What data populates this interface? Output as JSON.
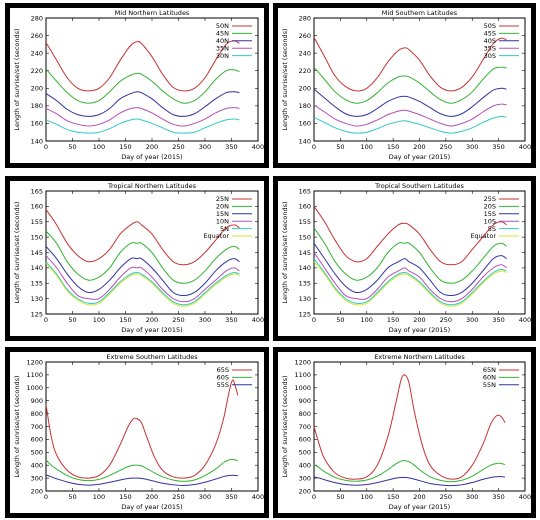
{
  "chart_data": [
    {
      "type": "line",
      "title": "Mid Northern Latitudes",
      "xlabel": "Day of year (2015)",
      "ylabel": "Length of sunrise/set (seconds)",
      "xlim": [
        0,
        400
      ],
      "ylim": [
        140,
        280
      ],
      "xticks": [
        0,
        50,
        100,
        150,
        200,
        250,
        300,
        350,
        400
      ],
      "yticks": [
        140,
        160,
        180,
        200,
        220,
        240,
        260,
        280
      ],
      "legend_position": "top-right",
      "x": [
        0,
        20,
        40,
        60,
        80,
        100,
        120,
        140,
        160,
        172,
        180,
        200,
        220,
        240,
        260,
        280,
        300,
        320,
        340,
        355,
        365
      ],
      "series": [
        {
          "name": "50N",
          "color": "#c83232",
          "values": [
            252,
            232,
            212,
            200,
            197,
            200,
            212,
            232,
            249,
            253,
            251,
            236,
            216,
            201,
            197,
            200,
            212,
            232,
            250,
            254,
            251
          ]
        },
        {
          "name": "45N",
          "color": "#32b432",
          "values": [
            222,
            208,
            195,
            186,
            183,
            186,
            196,
            208,
            215,
            217,
            216,
            208,
            197,
            188,
            183,
            186,
            196,
            210,
            220,
            221,
            219
          ]
        },
        {
          "name": "40N",
          "color": "#3232a0",
          "values": [
            194,
            186,
            176,
            170,
            168,
            170,
            177,
            188,
            194,
            196,
            195,
            188,
            178,
            170,
            168,
            171,
            179,
            188,
            195,
            196,
            195
          ]
        },
        {
          "name": "35N",
          "color": "#b450b4",
          "values": [
            177,
            171,
            163,
            159,
            157,
            159,
            164,
            172,
            177,
            178,
            177,
            172,
            165,
            159,
            157,
            160,
            165,
            172,
            177,
            178,
            177
          ]
        },
        {
          "name": "30N",
          "color": "#32c8c8",
          "values": [
            164,
            159,
            153,
            150,
            149,
            150,
            154,
            160,
            164,
            165,
            164,
            160,
            155,
            150,
            149,
            150,
            155,
            160,
            164,
            165,
            164
          ]
        }
      ]
    },
    {
      "type": "line",
      "title": "Mid Southern Latitudes",
      "xlabel": "Day of year (2015)",
      "ylabel": "Length of sunrise/set (seconds)",
      "xlim": [
        0,
        400
      ],
      "ylim": [
        140,
        280
      ],
      "xticks": [
        0,
        50,
        100,
        150,
        200,
        250,
        300,
        350,
        400
      ],
      "yticks": [
        140,
        160,
        180,
        200,
        220,
        240,
        260,
        280
      ],
      "legend_position": "top-right",
      "x": [
        0,
        20,
        40,
        60,
        80,
        100,
        120,
        140,
        160,
        172,
        180,
        200,
        220,
        240,
        260,
        280,
        300,
        320,
        340,
        355,
        365
      ],
      "series": [
        {
          "name": "50S",
          "color": "#c83232",
          "values": [
            258,
            236,
            214,
            202,
            197,
            200,
            212,
            230,
            243,
            246,
            244,
            232,
            214,
            201,
            197,
            201,
            213,
            232,
            251,
            257,
            255
          ]
        },
        {
          "name": "45S",
          "color": "#32b432",
          "values": [
            224,
            210,
            196,
            187,
            183,
            186,
            195,
            206,
            213,
            214,
            213,
            206,
            196,
            187,
            183,
            187,
            196,
            210,
            222,
            224,
            223
          ]
        },
        {
          "name": "40S",
          "color": "#3232a0",
          "values": [
            199,
            189,
            179,
            171,
            168,
            170,
            177,
            185,
            190,
            191,
            190,
            185,
            178,
            171,
            168,
            171,
            179,
            189,
            198,
            200,
            199
          ]
        },
        {
          "name": "35S",
          "color": "#b450b4",
          "values": [
            181,
            173,
            165,
            160,
            157,
            159,
            164,
            170,
            174,
            175,
            174,
            170,
            165,
            160,
            157,
            160,
            165,
            173,
            180,
            182,
            181
          ]
        },
        {
          "name": "30S",
          "color": "#32c8c8",
          "values": [
            167,
            161,
            155,
            151,
            149,
            150,
            154,
            159,
            162,
            163,
            162,
            159,
            155,
            151,
            149,
            151,
            155,
            161,
            166,
            168,
            167
          ]
        }
      ]
    },
    {
      "type": "line",
      "title": "Tropical Northern Latitudes",
      "xlabel": "Day of year (2015)",
      "ylabel": "Length of sunrise/set (seconds)",
      "xlim": [
        0,
        400
      ],
      "ylim": [
        125,
        165
      ],
      "xticks": [
        0,
        50,
        100,
        150,
        200,
        250,
        300,
        350,
        400
      ],
      "yticks": [
        125,
        130,
        135,
        140,
        145,
        150,
        155,
        160,
        165
      ],
      "legend_position": "top-right",
      "x": [
        0,
        20,
        40,
        60,
        80,
        100,
        120,
        140,
        160,
        172,
        180,
        200,
        220,
        240,
        260,
        280,
        300,
        320,
        340,
        355,
        365
      ],
      "series": [
        {
          "name": "25N",
          "color": "#c83232",
          "values": [
            159,
            154,
            148,
            144,
            142,
            143,
            146,
            151,
            154,
            155,
            154,
            151,
            146,
            142,
            141,
            142,
            145,
            149,
            153,
            154,
            153
          ]
        },
        {
          "name": "20N",
          "color": "#32b432",
          "values": [
            152,
            148,
            142,
            138,
            136,
            137,
            140,
            145,
            148,
            148,
            148,
            145,
            140,
            136,
            135,
            136,
            139,
            143,
            146,
            147,
            146
          ]
        },
        {
          "name": "15N",
          "color": "#3232a0",
          "values": [
            147,
            143,
            138,
            134,
            132,
            133,
            136,
            140,
            143,
            143,
            143,
            140,
            136,
            132,
            131,
            132,
            135,
            139,
            142,
            143,
            142
          ]
        },
        {
          "name": "10N",
          "color": "#b450b4",
          "values": [
            144,
            140,
            135,
            131,
            130,
            130,
            133,
            137,
            140,
            140,
            140,
            137,
            133,
            130,
            129,
            130,
            133,
            136,
            139,
            140,
            139
          ]
        },
        {
          "name": "5N",
          "color": "#32c8c8",
          "values": [
            142,
            138,
            133,
            130,
            128.5,
            129,
            132,
            135.5,
            138,
            138.5,
            138,
            135.5,
            132,
            129,
            128,
            129,
            132,
            135,
            137.5,
            138.5,
            138
          ]
        },
        {
          "name": "Equator",
          "color": "#d2e632",
          "values": [
            141.5,
            137.5,
            132.5,
            129.5,
            128,
            128.5,
            131.5,
            135,
            137.5,
            138,
            137.5,
            135,
            131.5,
            128.5,
            127.5,
            128.5,
            131.5,
            134.5,
            137,
            138,
            137.5
          ]
        }
      ]
    },
    {
      "type": "line",
      "title": "Tropical Southern Latitudes",
      "xlabel": "Day of year (2015)",
      "ylabel": "Length of sunrise/set (seconds)",
      "xlim": [
        0,
        400
      ],
      "ylim": [
        125,
        165
      ],
      "xticks": [
        0,
        50,
        100,
        150,
        200,
        250,
        300,
        350,
        400
      ],
      "yticks": [
        125,
        130,
        135,
        140,
        145,
        150,
        155,
        160,
        165
      ],
      "legend_position": "top-right",
      "x": [
        0,
        20,
        40,
        60,
        80,
        100,
        120,
        140,
        160,
        172,
        180,
        200,
        220,
        240,
        260,
        280,
        300,
        320,
        340,
        355,
        365
      ],
      "series": [
        {
          "name": "25S",
          "color": "#c83232",
          "values": [
            160,
            155,
            149,
            144,
            142,
            143,
            147,
            151,
            154,
            154.5,
            154,
            151,
            146,
            142,
            141,
            142,
            146,
            150,
            154,
            155,
            154
          ]
        },
        {
          "name": "20S",
          "color": "#32b432",
          "values": [
            153,
            148,
            142,
            138,
            136,
            137,
            140,
            145,
            148,
            148,
            148,
            145,
            140,
            136,
            135,
            136,
            139,
            143,
            147,
            148,
            147
          ]
        },
        {
          "name": "15S",
          "color": "#3232a0",
          "values": [
            148,
            143,
            138,
            134,
            132,
            133,
            136,
            140,
            142,
            143,
            142,
            140,
            136,
            132,
            131,
            132,
            135,
            139,
            143,
            144,
            143
          ]
        },
        {
          "name": "10S",
          "color": "#b450b4",
          "values": [
            145,
            140,
            135,
            131,
            130,
            130,
            133,
            137,
            139,
            140,
            139,
            137,
            133,
            130,
            129,
            130,
            133,
            137,
            140,
            141,
            140
          ]
        },
        {
          "name": "5S",
          "color": "#32c8c8",
          "values": [
            143,
            138.5,
            133.5,
            130,
            128.5,
            129,
            132,
            135.5,
            138,
            138.5,
            138,
            135.5,
            132,
            129,
            128,
            129,
            132,
            135.5,
            138.5,
            139.5,
            139
          ]
        },
        {
          "name": "Equator",
          "color": "#d2e632",
          "values": [
            142,
            138,
            133,
            129.5,
            128,
            128.5,
            131.5,
            135,
            137.5,
            138,
            137.5,
            135,
            131.5,
            128.5,
            127.5,
            128.5,
            131.5,
            135,
            138,
            139,
            138.5
          ]
        }
      ]
    },
    {
      "type": "line",
      "title": "Extreme Southern Latitudes",
      "xlabel": "Day of year (2015)",
      "ylabel": "Length of sunrise/set (seconds)",
      "xlim": [
        0,
        400
      ],
      "ylim": [
        200,
        1200
      ],
      "xticks": [
        0,
        50,
        100,
        150,
        200,
        250,
        300,
        350,
        400
      ],
      "yticks": [
        200,
        300,
        400,
        500,
        600,
        700,
        800,
        900,
        1000,
        1100,
        1200
      ],
      "legend_position": "top-right",
      "x": [
        0,
        10,
        20,
        40,
        60,
        80,
        100,
        120,
        140,
        155,
        165,
        172,
        180,
        190,
        205,
        220,
        240,
        260,
        280,
        300,
        320,
        335,
        345,
        352,
        358,
        362
      ],
      "series": [
        {
          "name": "65S",
          "color": "#c83232",
          "values": [
            870,
            620,
            480,
            360,
            310,
            300,
            320,
            400,
            560,
            700,
            760,
            760,
            730,
            620,
            460,
            360,
            310,
            300,
            320,
            400,
            560,
            760,
            960,
            1060,
            1000,
            940
          ]
        },
        {
          "name": "60S",
          "color": "#32b432",
          "values": [
            440,
            400,
            370,
            320,
            290,
            280,
            290,
            320,
            360,
            390,
            400,
            400,
            395,
            375,
            340,
            310,
            285,
            275,
            285,
            320,
            370,
            420,
            440,
            445,
            440,
            435
          ]
        },
        {
          "name": "55S",
          "color": "#3232a0",
          "values": [
            325,
            310,
            295,
            270,
            252,
            245,
            252,
            268,
            285,
            297,
            300,
            300,
            298,
            290,
            275,
            260,
            248,
            243,
            250,
            268,
            292,
            312,
            320,
            322,
            320,
            318
          ]
        }
      ]
    },
    {
      "type": "line",
      "title": "Extreme Northern Latitudes",
      "xlabel": "Day of year (2015)",
      "ylabel": "Length of sunrise/set (seconds)",
      "xlim": [
        0,
        400
      ],
      "ylim": [
        200,
        1200
      ],
      "xticks": [
        0,
        50,
        100,
        150,
        200,
        250,
        300,
        350,
        400
      ],
      "yticks": [
        200,
        300,
        400,
        500,
        600,
        700,
        800,
        900,
        1000,
        1100,
        1200
      ],
      "legend_position": "top-right",
      "x": [
        0,
        10,
        20,
        40,
        60,
        80,
        100,
        120,
        140,
        155,
        165,
        172,
        180,
        190,
        205,
        220,
        240,
        260,
        280,
        300,
        320,
        335,
        345,
        352,
        358,
        362
      ],
      "series": [
        {
          "name": "65N",
          "color": "#c83232",
          "values": [
            700,
            560,
            450,
            340,
            300,
            292,
            310,
            400,
            620,
            880,
            1060,
            1100,
            1040,
            820,
            560,
            400,
            320,
            292,
            310,
            400,
            560,
            720,
            780,
            785,
            760,
            730
          ]
        },
        {
          "name": "60N",
          "color": "#32b432",
          "values": [
            405,
            380,
            350,
            305,
            282,
            276,
            285,
            315,
            365,
            410,
            432,
            435,
            428,
            400,
            350,
            310,
            282,
            272,
            283,
            315,
            365,
            400,
            412,
            415,
            410,
            405
          ]
        },
        {
          "name": "55N",
          "color": "#3232a0",
          "values": [
            310,
            300,
            287,
            265,
            250,
            245,
            250,
            265,
            285,
            300,
            305,
            305,
            302,
            292,
            275,
            258,
            247,
            242,
            248,
            266,
            290,
            305,
            310,
            312,
            310,
            308
          ]
        }
      ]
    }
  ]
}
